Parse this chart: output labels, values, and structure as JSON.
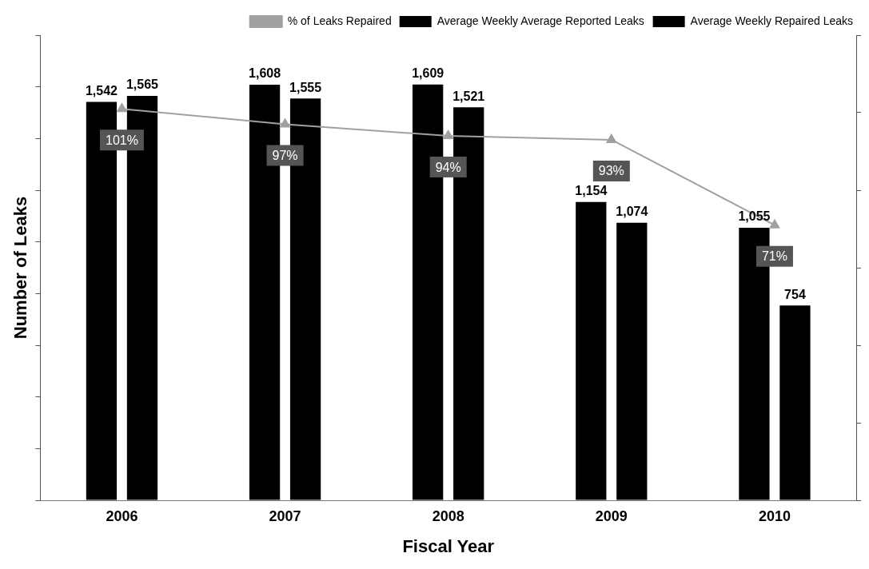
{
  "chart_data": {
    "type": "bar",
    "xlabel": "Fiscal Year",
    "ylabel": "Number of Leaks",
    "categories": [
      "2006",
      "2007",
      "2008",
      "2009",
      "2010"
    ],
    "series": [
      {
        "name": "Average Weekly Average Reported Leaks",
        "color": "#000000",
        "values": [
          1542,
          1608,
          1609,
          1154,
          1055
        ],
        "value_labels": [
          "1,542",
          "1,608",
          "1,609",
          "1,154",
          "1,055"
        ]
      },
      {
        "name": "Average Weekly Repaired Leaks",
        "color": "#000000",
        "values": [
          1565,
          1555,
          1521,
          1074,
          754
        ],
        "value_labels": [
          "1,565",
          "1,555",
          "1,521",
          "1,074",
          "754"
        ]
      },
      {
        "name": "% of Leaks Repaired",
        "type": "line",
        "axis": "y2",
        "color": "#a0a0a0",
        "marker": "triangle",
        "values": [
          101,
          97,
          94,
          93,
          71
        ],
        "value_labels": [
          "101%",
          "97%",
          "94%",
          "93%",
          "71%"
        ]
      }
    ],
    "ylim": [
      0,
      1800
    ],
    "yticks": [
      {
        "value": 0,
        "label": null
      },
      {
        "value": 200,
        "label": null
      },
      {
        "value": 400,
        "label": null
      },
      {
        "value": 600,
        "label": null
      },
      {
        "value": 800,
        "label": null
      },
      {
        "value": 1000,
        "label": null
      },
      {
        "value": 1200,
        "label": null
      },
      {
        "value": 1400,
        "label": null
      },
      {
        "value": 1600,
        "label": null
      },
      {
        "value": 1800,
        "label": null
      }
    ],
    "y2lim": [
      0,
      120
    ],
    "y2ticks": [
      {
        "value": 0,
        "label": null
      },
      {
        "value": 20,
        "label": null
      },
      {
        "value": 40,
        "label": null
      },
      {
        "value": 60,
        "label": null
      },
      {
        "value": 80,
        "label": null
      },
      {
        "value": 100,
        "label": null
      },
      {
        "value": 120,
        "label": null
      }
    ],
    "tick_labels": "x",
    "grid": false,
    "legend": "top right"
  }
}
